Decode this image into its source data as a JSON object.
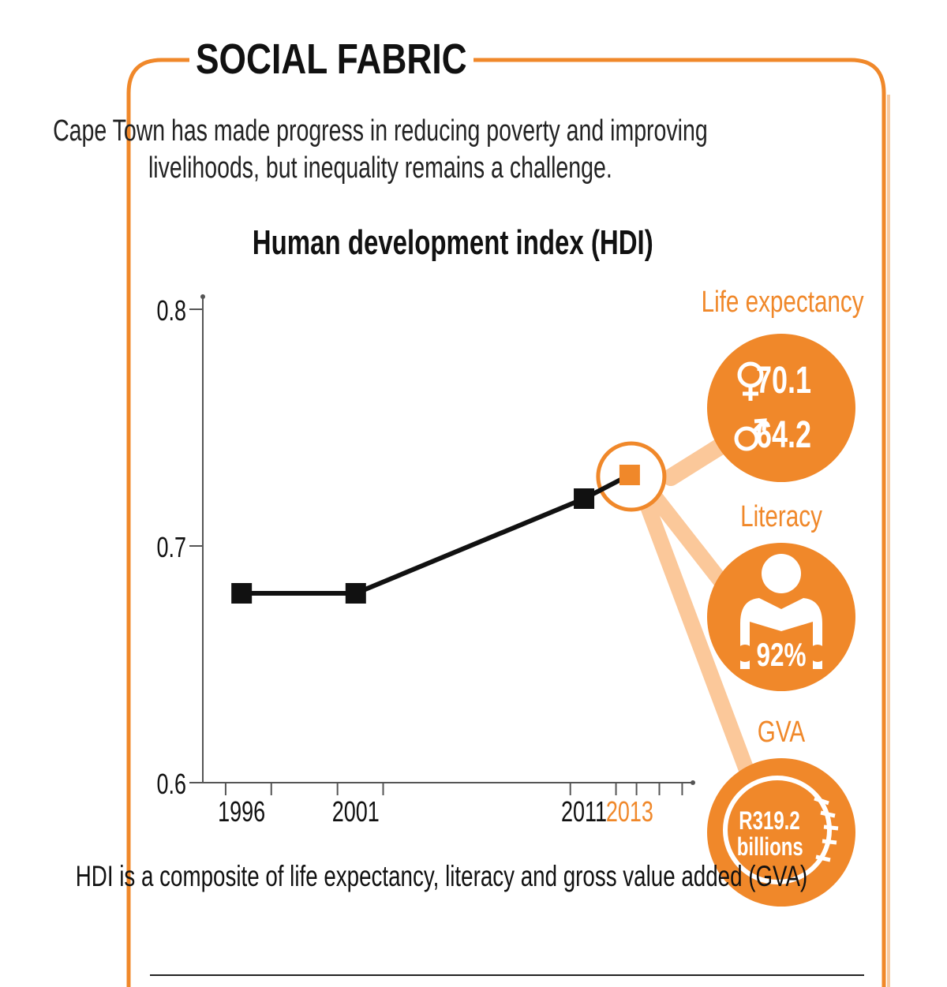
{
  "section": {
    "title": "SOCIAL FABRIC",
    "intro": "Cape Town has made progress in reducing poverty and improving livelihoods, but inequality remains a challenge."
  },
  "chart_data": {
    "type": "line",
    "title": "Human development index (HDI)",
    "xlabel": "",
    "ylabel": "",
    "x": [
      "1996",
      "2001",
      "2011",
      "2013"
    ],
    "values": [
      0.68,
      0.68,
      0.72,
      0.73
    ],
    "highlight": "2013",
    "ylim": [
      0.6,
      0.8
    ],
    "yticks": [
      "0.6",
      "0.7",
      "0.8"
    ],
    "grid": false,
    "colors": {
      "line": "#111111",
      "accent": "#f0882a",
      "connector": "#fbc89a"
    }
  },
  "components": {
    "life_expectancy": {
      "label": "Life expectancy",
      "female": "70.1",
      "male": "64.2"
    },
    "literacy": {
      "label": "Literacy",
      "value": "92%"
    },
    "gva": {
      "label": "GVA",
      "value_line1": "R319.2",
      "value_line2": "billions"
    }
  },
  "footnote": "HDI is a composite of life expectancy, literacy and gross value added (GVA)",
  "icons": {
    "female": "female-symbol-icon",
    "male": "male-symbol-icon",
    "literacy": "reader-icon",
    "gva": "coin-icon"
  }
}
